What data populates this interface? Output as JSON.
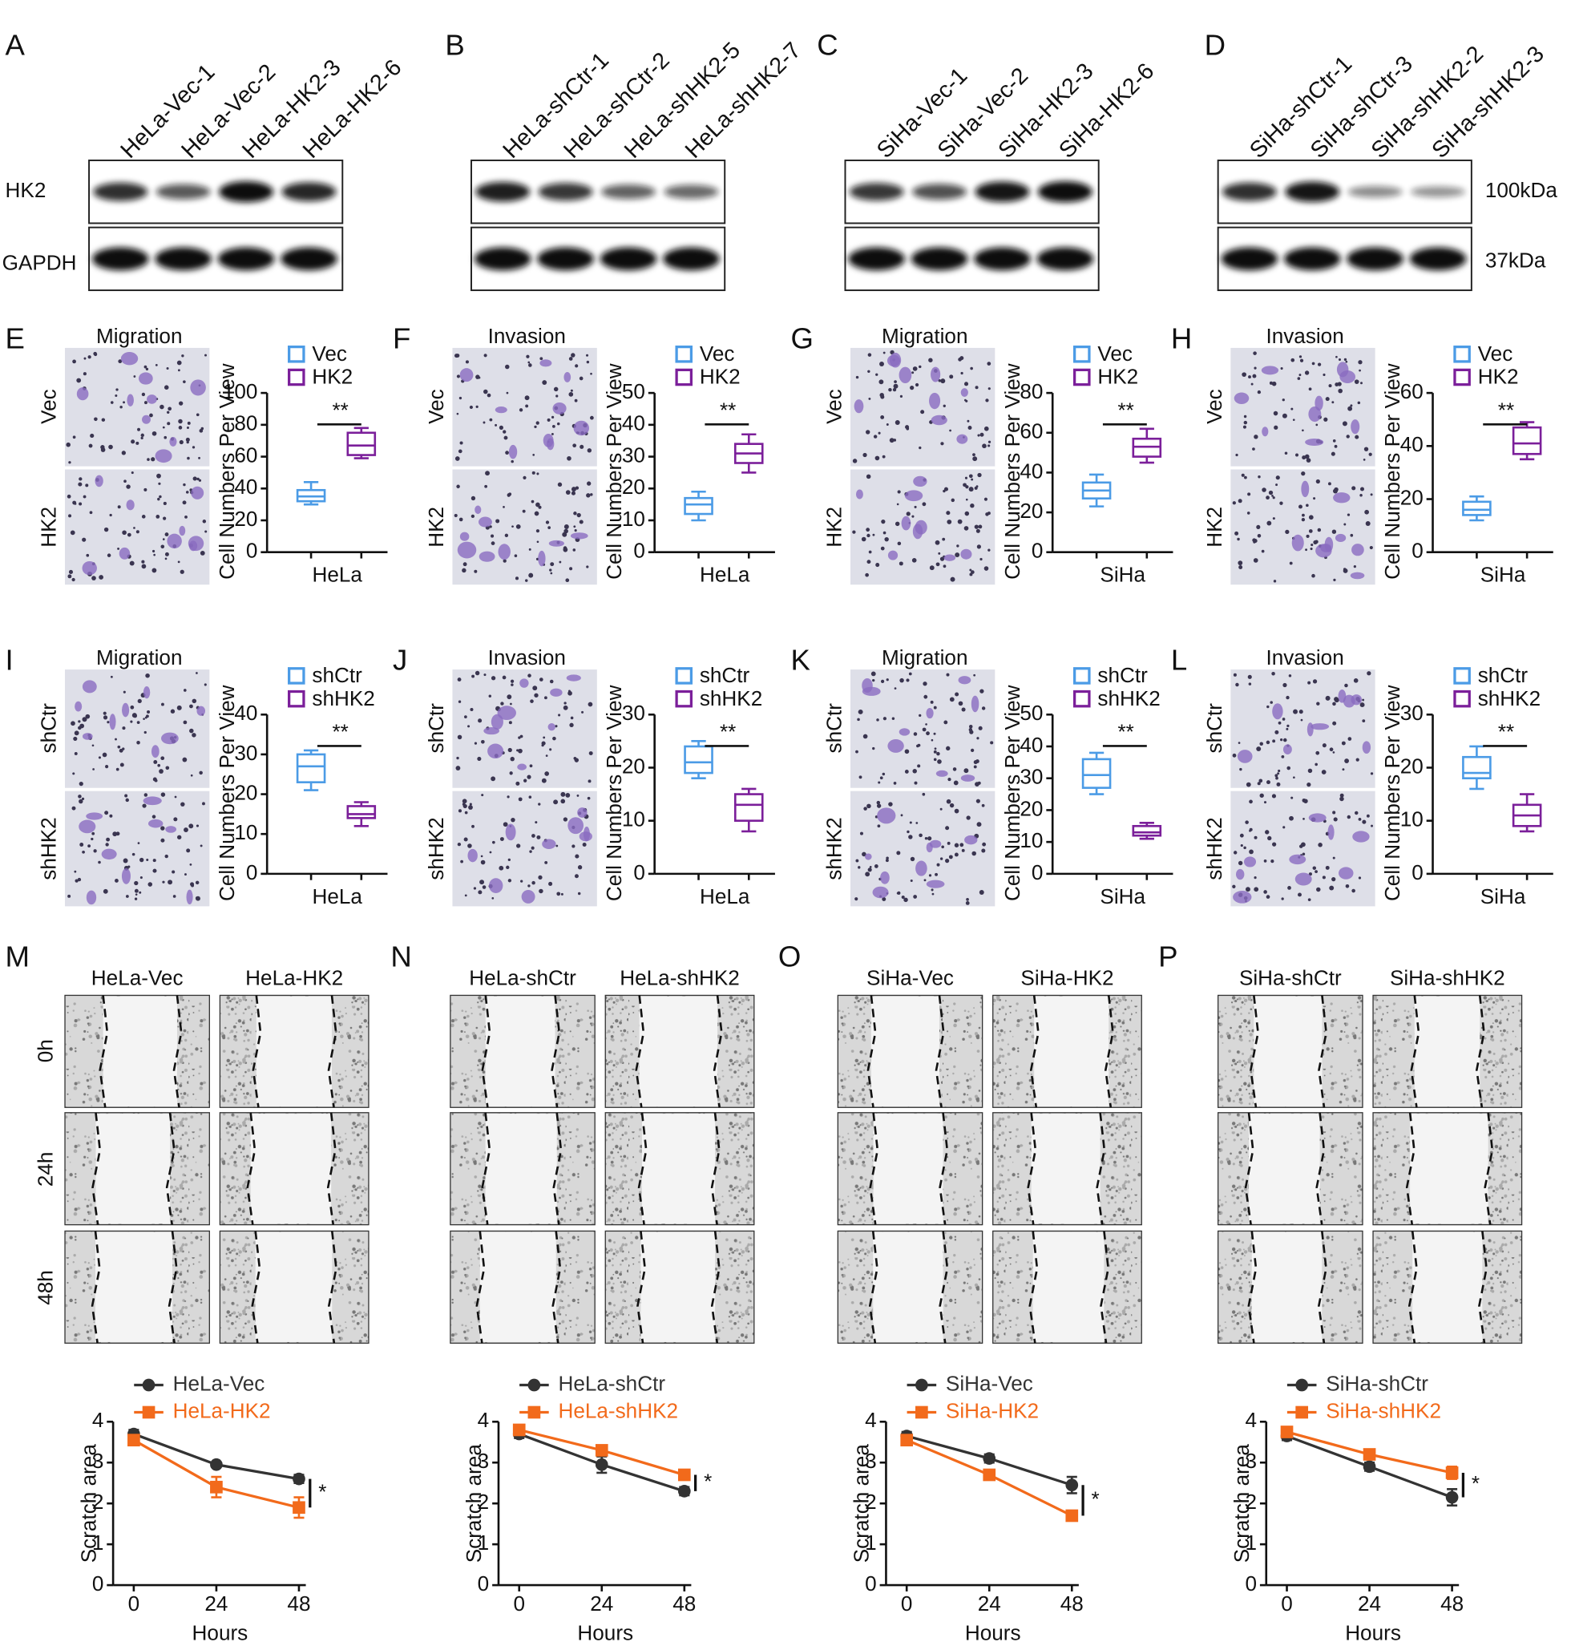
{
  "blots": [
    {
      "letter": "A",
      "lanes": [
        "HeLa-Vec-1",
        "HeLa-Vec-2",
        "HeLa-HK2-3",
        "HeLa-HK2-6"
      ]
    },
    {
      "letter": "B",
      "lanes": [
        "HeLa-shCtr-1",
        "HeLa-shCtr-2",
        "HeLa-shHK2-5",
        "HeLa-shHK2-7"
      ]
    },
    {
      "letter": "C",
      "lanes": [
        "SiHa-Vec-1",
        "SiHa-Vec-2",
        "SiHa-HK2-3",
        "SiHa-HK2-6"
      ]
    },
    {
      "letter": "D",
      "lanes": [
        "SiHa-shCtr-1",
        "SiHa-shCtr-3",
        "SiHa-shHK2-2",
        "SiHa-shHK2-3"
      ]
    }
  ],
  "blot_row_labels": [
    "HK2",
    "GAPDH"
  ],
  "blot_sizes": [
    "100kDa",
    "37kDa"
  ],
  "chart_data": [
    {
      "type": "box",
      "letter": "E",
      "image_title": "Migration",
      "image_rows": [
        "Vec",
        "HK2"
      ],
      "ylabel": "Cell Numbers Per View",
      "xlabel": "HeLa",
      "significance": "**",
      "ylim": [
        0,
        100
      ],
      "yticks": [
        0,
        20,
        40,
        60,
        80,
        100
      ],
      "series": [
        {
          "name": "Vec",
          "color": "#4b9be6",
          "min": 30,
          "q1": 32,
          "median": 35,
          "q3": 39,
          "max": 44
        },
        {
          "name": "HK2",
          "color": "#7b1f9a",
          "min": 59,
          "q1": 61,
          "median": 67,
          "q3": 75,
          "max": 78
        }
      ]
    },
    {
      "type": "box",
      "letter": "F",
      "image_title": "Invasion",
      "image_rows": [
        "Vec",
        "HK2"
      ],
      "ylabel": "Cell Numbers Per View",
      "xlabel": "HeLa",
      "significance": "**",
      "ylim": [
        0,
        50
      ],
      "yticks": [
        0,
        10,
        20,
        30,
        40,
        50
      ],
      "series": [
        {
          "name": "Vec",
          "color": "#4b9be6",
          "min": 10,
          "q1": 12,
          "median": 15,
          "q3": 17,
          "max": 19
        },
        {
          "name": "HK2",
          "color": "#7b1f9a",
          "min": 25,
          "q1": 28,
          "median": 31,
          "q3": 34,
          "max": 37
        }
      ]
    },
    {
      "type": "box",
      "letter": "G",
      "image_title": "Migration",
      "image_rows": [
        "Vec",
        "HK2"
      ],
      "ylabel": "Cell Numbers Per View",
      "xlabel": "SiHa",
      "significance": "**",
      "ylim": [
        0,
        80
      ],
      "yticks": [
        0,
        20,
        40,
        60,
        80
      ],
      "series": [
        {
          "name": "Vec",
          "color": "#4b9be6",
          "min": 23,
          "q1": 27,
          "median": 31,
          "q3": 35,
          "max": 39
        },
        {
          "name": "HK2",
          "color": "#7b1f9a",
          "min": 45,
          "q1": 48,
          "median": 53,
          "q3": 57,
          "max": 62
        }
      ]
    },
    {
      "type": "box",
      "letter": "H",
      "image_title": "Invasion",
      "image_rows": [
        "Vec",
        "HK2"
      ],
      "ylabel": "Cell Numbers Per View",
      "xlabel": "SiHa",
      "significance": "**",
      "ylim": [
        0,
        60
      ],
      "yticks": [
        0,
        20,
        40,
        60
      ],
      "series": [
        {
          "name": "Vec",
          "color": "#4b9be6",
          "min": 12,
          "q1": 14,
          "median": 16,
          "q3": 19,
          "max": 21
        },
        {
          "name": "HK2",
          "color": "#7b1f9a",
          "min": 35,
          "q1": 37,
          "median": 41,
          "q3": 47,
          "max": 49
        }
      ]
    },
    {
      "type": "box",
      "letter": "I",
      "image_title": "Migration",
      "image_rows": [
        "shCtr",
        "shHK2"
      ],
      "ylabel": "Cell Numbers Per View",
      "xlabel": "HeLa",
      "significance": "**",
      "ylim": [
        0,
        40
      ],
      "yticks": [
        0,
        10,
        20,
        30,
        40
      ],
      "series": [
        {
          "name": "shCtr",
          "color": "#4b9be6",
          "min": 21,
          "q1": 23,
          "median": 27,
          "q3": 30,
          "max": 31
        },
        {
          "name": "shHK2",
          "color": "#7b1f9a",
          "min": 12,
          "q1": 14,
          "median": 15,
          "q3": 17,
          "max": 18
        }
      ]
    },
    {
      "type": "box",
      "letter": "J",
      "image_title": "Invasion",
      "image_rows": [
        "shCtr",
        "shHK2"
      ],
      "ylabel": "Cell Numbers Per View",
      "xlabel": "HeLa",
      "significance": "**",
      "ylim": [
        0,
        30
      ],
      "yticks": [
        0,
        10,
        20,
        30
      ],
      "series": [
        {
          "name": "shCtr",
          "color": "#4b9be6",
          "min": 18,
          "q1": 19,
          "median": 21,
          "q3": 24,
          "max": 25
        },
        {
          "name": "shHK2",
          "color": "#7b1f9a",
          "min": 8,
          "q1": 10,
          "median": 13,
          "q3": 15,
          "max": 16
        }
      ]
    },
    {
      "type": "box",
      "letter": "K",
      "image_title": "Migration",
      "image_rows": [
        "shCtr",
        "shHK2"
      ],
      "ylabel": "Cell Numbers Per View",
      "xlabel": "SiHa",
      "significance": "**",
      "ylim": [
        0,
        50
      ],
      "yticks": [
        0,
        10,
        20,
        30,
        40,
        50
      ],
      "series": [
        {
          "name": "shCtr",
          "color": "#4b9be6",
          "min": 25,
          "q1": 27,
          "median": 31,
          "q3": 36,
          "max": 38
        },
        {
          "name": "shHK2",
          "color": "#7b1f9a",
          "min": 11,
          "q1": 12,
          "median": 13,
          "q3": 15,
          "max": 16
        }
      ]
    },
    {
      "type": "box",
      "letter": "L",
      "image_title": "Invasion",
      "image_rows": [
        "shCtr",
        "shHK2"
      ],
      "ylabel": "Cell Numbers Per View",
      "xlabel": "SiHa",
      "significance": "**",
      "ylim": [
        0,
        30
      ],
      "yticks": [
        0,
        10,
        20,
        30
      ],
      "series": [
        {
          "name": "shCtr",
          "color": "#4b9be6",
          "min": 16,
          "q1": 18,
          "median": 19,
          "q3": 22,
          "max": 24
        },
        {
          "name": "shHK2",
          "color": "#7b1f9a",
          "min": 8,
          "q1": 9,
          "median": 11,
          "q3": 13,
          "max": 15
        }
      ]
    },
    {
      "type": "line",
      "letter": "M",
      "image_columns": [
        "HeLa-Vec",
        "HeLa-HK2"
      ],
      "image_rows": [
        "0h",
        "24h",
        "48h"
      ],
      "ylabel": "Scratch area",
      "xlabel": "Hours",
      "significance": "*",
      "x": [
        0,
        24,
        48
      ],
      "xlim": [
        -6,
        50
      ],
      "xticks": [
        0,
        24,
        48
      ],
      "ylim": [
        0,
        4
      ],
      "yticks": [
        0,
        1,
        2,
        3,
        4
      ],
      "series": [
        {
          "name": "HeLa-Vec",
          "color": "#333333",
          "values": [
            3.7,
            2.95,
            2.6
          ],
          "errors": [
            0.1,
            0.05,
            0.1
          ]
        },
        {
          "name": "HeLa-HK2",
          "color": "#f26a1b",
          "values": [
            3.55,
            2.4,
            1.9
          ],
          "errors": [
            0.1,
            0.25,
            0.25
          ]
        }
      ]
    },
    {
      "type": "line",
      "letter": "N",
      "image_columns": [
        "HeLa-shCtr",
        "HeLa-shHK2"
      ],
      "ylabel": "Scratch area",
      "xlabel": "Hours",
      "significance": "*",
      "x": [
        0,
        24,
        48
      ],
      "xlim": [
        -6,
        50
      ],
      "xticks": [
        0,
        24,
        48
      ],
      "ylim": [
        0,
        4
      ],
      "yticks": [
        0,
        1,
        2,
        3,
        4
      ],
      "series": [
        {
          "name": "HeLa-shCtr",
          "color": "#333333",
          "values": [
            3.7,
            2.95,
            2.3
          ],
          "errors": [
            0.1,
            0.2,
            0.1
          ]
        },
        {
          "name": "HeLa-shHK2",
          "color": "#f26a1b",
          "values": [
            3.8,
            3.3,
            2.7
          ],
          "errors": [
            0.05,
            0.1,
            0.1
          ]
        }
      ]
    },
    {
      "type": "line",
      "letter": "O",
      "image_columns": [
        "SiHa-Vec",
        "SiHa-HK2"
      ],
      "ylabel": "Scratch area",
      "xlabel": "Hours",
      "significance": "*",
      "x": [
        0,
        24,
        48
      ],
      "xlim": [
        -6,
        50
      ],
      "xticks": [
        0,
        24,
        48
      ],
      "ylim": [
        0,
        4
      ],
      "yticks": [
        0,
        1,
        2,
        3,
        4
      ],
      "series": [
        {
          "name": "SiHa-Vec",
          "color": "#333333",
          "values": [
            3.65,
            3.1,
            2.45
          ],
          "errors": [
            0.1,
            0.1,
            0.2
          ]
        },
        {
          "name": "SiHa-HK2",
          "color": "#f26a1b",
          "values": [
            3.55,
            2.7,
            1.7
          ],
          "errors": [
            0.1,
            0.1,
            0.08
          ]
        }
      ]
    },
    {
      "type": "line",
      "letter": "P",
      "image_columns": [
        "SiHa-shCtr",
        "SiHa-shHK2"
      ],
      "ylabel": "Scratch area",
      "xlabel": "Hours",
      "significance": "*",
      "x": [
        0,
        24,
        48
      ],
      "xlim": [
        -6,
        50
      ],
      "xticks": [
        0,
        24,
        48
      ],
      "ylim": [
        0,
        4
      ],
      "yticks": [
        0,
        1,
        2,
        3,
        4
      ],
      "series": [
        {
          "name": "SiHa-shCtr",
          "color": "#333333",
          "values": [
            3.65,
            2.9,
            2.15
          ],
          "errors": [
            0.1,
            0.1,
            0.2
          ]
        },
        {
          "name": "SiHa-shHK2",
          "color": "#f26a1b",
          "values": [
            3.75,
            3.2,
            2.75
          ],
          "errors": [
            0.05,
            0.05,
            0.15
          ]
        }
      ]
    }
  ]
}
